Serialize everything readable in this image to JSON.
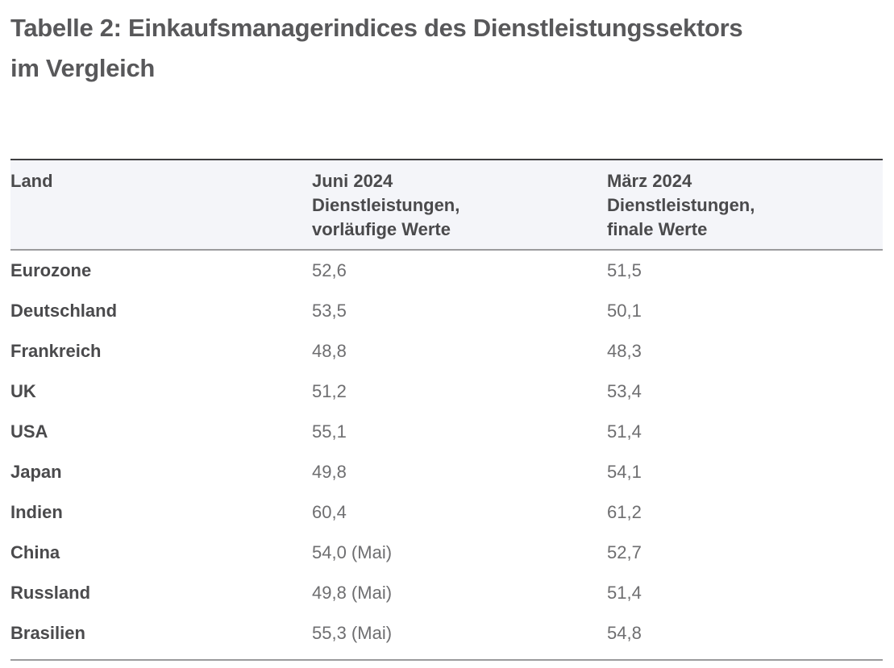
{
  "title": "Tabelle 2: Einkaufsmanagerindices des Dienstleistungssektors\nim Vergleich",
  "table": {
    "columns": [
      {
        "label": "Land"
      },
      {
        "label": "Juni 2024\nDienstleistungen,\nvorläufige Werte"
      },
      {
        "label": "März 2024\nDienstleistungen,\nfinale Werte"
      }
    ],
    "rows": [
      {
        "land": "Eurozone",
        "juni_2024": "52,6",
        "maerz_2024": "51,5"
      },
      {
        "land": "Deutschland",
        "juni_2024": "53,5",
        "maerz_2024": "50,1"
      },
      {
        "land": "Frankreich",
        "juni_2024": "48,8",
        "maerz_2024": "48,3"
      },
      {
        "land": "UK",
        "juni_2024": "51,2",
        "maerz_2024": "53,4"
      },
      {
        "land": "USA",
        "juni_2024": "55,1",
        "maerz_2024": "51,4"
      },
      {
        "land": "Japan",
        "juni_2024": "49,8",
        "maerz_2024": "54,1"
      },
      {
        "land": "Indien",
        "juni_2024": "60,4",
        "maerz_2024": "61,2"
      },
      {
        "land": "China",
        "juni_2024": "54,0 (Mai)",
        "maerz_2024": "52,7"
      },
      {
        "land": "Russland",
        "juni_2024": "49,8 (Mai)",
        "maerz_2024": "51,4"
      },
      {
        "land": "Brasilien",
        "juni_2024": "55,3 (Mai)",
        "maerz_2024": "54,8"
      }
    ]
  },
  "colors": {
    "title_text": "#58585a",
    "header_bg": "#f4f5f9",
    "header_text": "#4a4a4c",
    "country_text": "#4a4a4c",
    "value_text": "#6e6e70",
    "top_border": "#3d3d3f",
    "rule_border": "#9b9b9d"
  }
}
